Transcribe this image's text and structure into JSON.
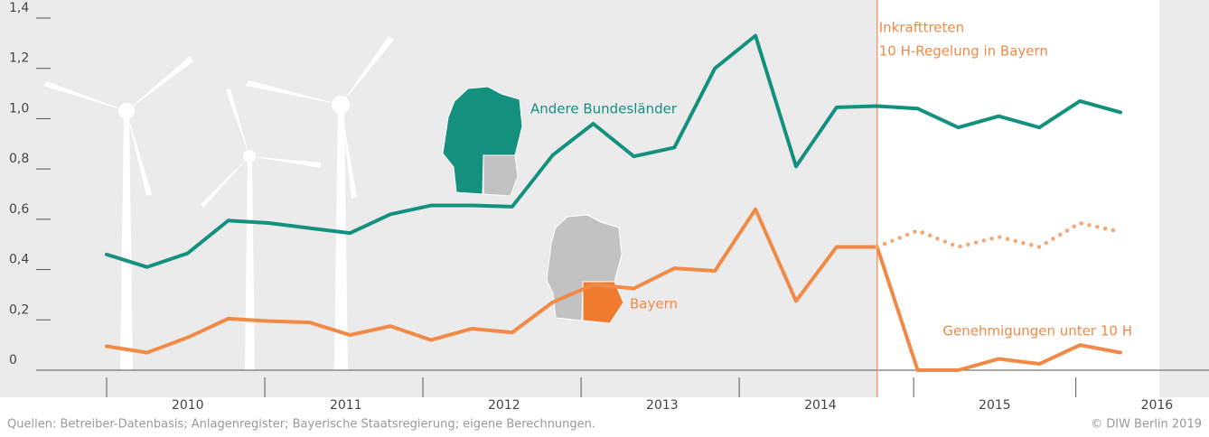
{
  "chart_data": {
    "type": "line",
    "x": [
      0,
      1,
      2,
      3,
      4,
      5,
      6,
      7,
      8,
      9,
      10,
      11,
      12,
      13,
      14,
      15,
      16,
      17,
      18,
      19,
      20,
      21,
      22,
      23,
      24,
      25
    ],
    "xlim": [
      0,
      25
    ],
    "xticks": [
      {
        "value": 2,
        "label": "2010"
      },
      {
        "value": 5.9,
        "label": "2011"
      },
      {
        "value": 9.8,
        "label": "2012"
      },
      {
        "value": 13.7,
        "label": "2013"
      },
      {
        "value": 17.6,
        "label": "2014"
      },
      {
        "value": 21.9,
        "label": "2015"
      },
      {
        "value": 25.9,
        "label": "2016"
      }
    ],
    "ylim": [
      0,
      1.4
    ],
    "yticks": [
      0,
      {
        "value": 0.2,
        "label": "0,2"
      },
      {
        "value": 0.4,
        "label": "0,4"
      },
      {
        "value": 0.6,
        "label": "0,6"
      },
      {
        "value": 0.8,
        "label": "0,8"
      },
      {
        "value": 1.0,
        "label": "1,0"
      },
      {
        "value": 1.2,
        "label": "1,2"
      },
      {
        "value": 1.4,
        "label": "1,4"
      }
    ],
    "series": [
      {
        "name": "Andere Bundesländer",
        "color": "#14907f",
        "values": [
          0.46,
          0.41,
          0.465,
          0.595,
          0.585,
          0.565,
          0.545,
          0.62,
          0.655,
          0.655,
          0.65,
          0.855,
          0.98,
          0.85,
          0.885,
          1.2,
          1.33,
          0.81,
          1.045,
          1.05,
          1.04,
          0.965,
          1.01,
          0.965,
          1.07,
          1.025
        ]
      },
      {
        "name": "Bayern",
        "color": "#f08a46",
        "values": [
          0.095,
          0.07,
          0.13,
          0.205,
          0.195,
          0.19,
          0.14,
          0.175,
          0.12,
          0.165,
          0.15,
          0.27,
          0.34,
          0.325,
          0.405,
          0.395,
          0.64,
          0.275,
          0.49,
          0.49,
          0,
          0,
          0.045,
          0.025,
          0.1,
          0.07
        ]
      },
      {
        "color": "#f4a878",
        "dashed": true,
        "values": [
          null,
          null,
          null,
          null,
          null,
          null,
          null,
          null,
          null,
          null,
          null,
          null,
          null,
          null,
          null,
          null,
          null,
          null,
          null,
          0.49,
          0.555,
          0.49,
          0.53,
          0.49,
          0.585,
          0.55
        ]
      }
    ],
    "annotations": {
      "event_x": 19,
      "event_line1": "Inkrafttreten",
      "event_line2": "10 H-Regelung  in Bayern",
      "under_label": "Genehmigungen unter 10 H"
    },
    "source": "Quellen: Betreiber-Datenbasis; Anlagenregister; Bayerische Staatsregierung; eigene Berechnungen.",
    "copyright": "© DIW Berlin 2019"
  }
}
